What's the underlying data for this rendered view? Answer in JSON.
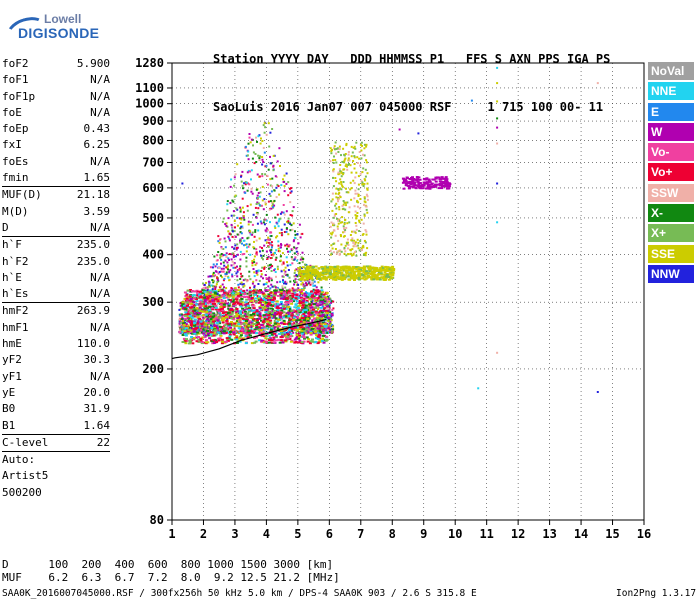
{
  "logo": {
    "line1": "Lowell",
    "line2": "DIGISONDE"
  },
  "header": {
    "line1": "Station YYYY DAY   DDD HHMMSS P1   FFS S AXN PPS IGA PS",
    "line2": "SaoLuis 2016 Jan07 007 045000 RSF     1 715 100 00- 11"
  },
  "params": [
    {
      "k": "foF2",
      "v": "5.900",
      "sep": false
    },
    {
      "k": "foF1",
      "v": "N/A",
      "sep": false
    },
    {
      "k": "foF1p",
      "v": "N/A",
      "sep": false
    },
    {
      "k": "foE",
      "v": "N/A",
      "sep": false
    },
    {
      "k": "foEp",
      "v": "0.43",
      "sep": false
    },
    {
      "k": "fxI",
      "v": "6.25",
      "sep": false
    },
    {
      "k": "foEs",
      "v": "N/A",
      "sep": false
    },
    {
      "k": "fmin",
      "v": "1.65",
      "sep": true
    },
    {
      "k": "MUF(D)",
      "v": "21.18",
      "sep": false
    },
    {
      "k": "M(D)",
      "v": "3.59",
      "sep": false
    },
    {
      "k": "D",
      "v": "N/A",
      "sep": true
    },
    {
      "k": "h`F",
      "v": "235.0",
      "sep": false
    },
    {
      "k": "h`F2",
      "v": "235.0",
      "sep": false
    },
    {
      "k": "h`E",
      "v": "N/A",
      "sep": false
    },
    {
      "k": "h`Es",
      "v": "N/A",
      "sep": true
    },
    {
      "k": "hmF2",
      "v": "263.9",
      "sep": false
    },
    {
      "k": "hmF1",
      "v": "N/A",
      "sep": false
    },
    {
      "k": "hmE",
      "v": "110.0",
      "sep": false
    },
    {
      "k": "yF2",
      "v": "30.3",
      "sep": false
    },
    {
      "k": "yF1",
      "v": "N/A",
      "sep": false
    },
    {
      "k": "yE",
      "v": "20.0",
      "sep": false
    },
    {
      "k": "B0",
      "v": "31.9",
      "sep": false
    },
    {
      "k": "B1",
      "v": "1.64",
      "sep": true
    },
    {
      "k": "C-level",
      "v": "22",
      "sep": true
    },
    {
      "k": "Auto:",
      "v": "",
      "sep": false
    },
    {
      "k": "Artist5",
      "v": "",
      "sep": false
    },
    {
      "k": "500200",
      "v": "",
      "sep": false
    }
  ],
  "chart_data": {
    "type": "scatter",
    "xlabel": "",
    "ylabel": "",
    "xlim": [
      1,
      16
    ],
    "ylim": [
      80,
      1280
    ],
    "yscale": "log",
    "x_ticks": [
      1,
      2,
      3,
      4,
      5,
      6,
      7,
      8,
      9,
      10,
      11,
      12,
      13,
      14,
      15,
      16
    ],
    "y_ticks": [
      80,
      200,
      300,
      400,
      500,
      600,
      700,
      800,
      900,
      1000,
      1100,
      1280
    ],
    "grid": true,
    "legend_position": "right",
    "legend": [
      {
        "name": "NoVal",
        "color": "#a0a0a0"
      },
      {
        "name": "NNE",
        "color": "#22d3f0"
      },
      {
        "name": "E",
        "color": "#2288ee"
      },
      {
        "name": "W",
        "color": "#b000b0"
      },
      {
        "name": "Vo-",
        "color": "#f040a0"
      },
      {
        "name": "Vo+",
        "color": "#ee0033"
      },
      {
        "name": "SSW",
        "color": "#f0b0a8"
      },
      {
        "name": "X-",
        "color": "#118811"
      },
      {
        "name": "X+",
        "color": "#77bb55"
      },
      {
        "name": "SSE",
        "color": "#cccc00"
      },
      {
        "name": "NNW",
        "color": "#2222dd"
      }
    ],
    "trace": {
      "x": [
        1.0,
        1.1,
        1.8,
        2.5,
        3.2,
        4.0,
        4.8,
        5.4,
        5.9
      ],
      "y": [
        213,
        214,
        218,
        226,
        238,
        248,
        258,
        264,
        270
      ]
    },
    "regions": [
      {
        "label": "F-trace cloud",
        "x": [
          1.2,
          6.0
        ],
        "y": [
          200,
          1050
        ],
        "colors": [
          "W",
          "Vo-",
          "Vo+",
          "X-",
          "X+",
          "SSE",
          "NNE",
          "E",
          "NNW",
          "SSW"
        ]
      },
      {
        "label": "SSE band",
        "x": [
          5.2,
          8.0
        ],
        "y": [
          350,
          380
        ],
        "colors": [
          "SSE"
        ]
      },
      {
        "label": "W cluster",
        "x": [
          8.2,
          9.8
        ],
        "y": [
          600,
          640
        ],
        "colors": [
          "W"
        ]
      },
      {
        "label": "SSE high",
        "x": [
          6.0,
          7.3
        ],
        "y": [
          500,
          800
        ],
        "colors": [
          "SSE",
          "SSW",
          "X+"
        ]
      }
    ],
    "scattered_points": [
      {
        "x": 11.3,
        "y": 1250,
        "c": "NNE"
      },
      {
        "x": 11.3,
        "y": 1140,
        "c": "SSE"
      },
      {
        "x": 14.5,
        "y": 1140,
        "c": "SSW"
      },
      {
        "x": 10.5,
        "y": 1025,
        "c": "E"
      },
      {
        "x": 11.3,
        "y": 1020,
        "c": "SSE"
      },
      {
        "x": 11.3,
        "y": 920,
        "c": "X-"
      },
      {
        "x": 11.3,
        "y": 870,
        "c": "W"
      },
      {
        "x": 11.3,
        "y": 790,
        "c": "SSW"
      },
      {
        "x": 11.3,
        "y": 620,
        "c": "NNW"
      },
      {
        "x": 11.3,
        "y": 490,
        "c": "NNE"
      },
      {
        "x": 11.3,
        "y": 222,
        "c": "SSW"
      },
      {
        "x": 10.7,
        "y": 179,
        "c": "NNE"
      },
      {
        "x": 14.5,
        "y": 175,
        "c": "NNW"
      },
      {
        "x": 1.3,
        "y": 620,
        "c": "NNW"
      },
      {
        "x": 8.2,
        "y": 860,
        "c": "W"
      },
      {
        "x": 8.8,
        "y": 840,
        "c": "NNW"
      }
    ]
  },
  "footer": {
    "line1": "D      100  200  400  600  800 1000 1500 3000 [km]",
    "line2": "MUF    6.2  6.3  6.7  7.2  8.0  9.2 12.5 21.2 [MHz]",
    "line3": "SAA0K_2016007045000.RSF / 300fx256h 50 kHz 5.0 km / DPS-4 SAA0K 903 / 2.6 S 315.8 E",
    "version": "Ion2Png 1.3.17"
  }
}
